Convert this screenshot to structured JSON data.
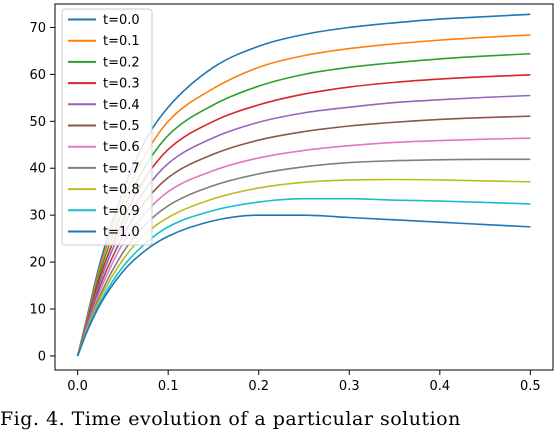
{
  "chart_data": {
    "type": "line",
    "title": "",
    "xlabel": "",
    "ylabel": "",
    "xlim": [
      -0.025,
      0.525
    ],
    "ylim": [
      -3,
      75
    ],
    "xticks": [
      0.0,
      0.1,
      0.2,
      0.3,
      0.4,
      0.5
    ],
    "xtick_labels": [
      "0.0",
      "0.1",
      "0.2",
      "0.3",
      "0.4",
      "0.5"
    ],
    "yticks": [
      0,
      10,
      20,
      30,
      40,
      50,
      60,
      70
    ],
    "ytick_labels": [
      "0",
      "10",
      "20",
      "30",
      "40",
      "50",
      "60",
      "70"
    ],
    "grid": false,
    "legend": "top-left",
    "x": [
      0,
      0.01,
      0.025,
      0.05,
      0.075,
      0.1,
      0.15,
      0.2,
      0.25,
      0.3,
      0.35,
      0.4,
      0.45,
      0.5
    ],
    "series": [
      {
        "name": "t=0.0",
        "color": "#1f77b4",
        "values": [
          0,
          8,
          20,
          35,
          46,
          53,
          61.5,
          66,
          68.5,
          70,
          71,
          71.8,
          72.3,
          72.8
        ]
      },
      {
        "name": "t=0.1",
        "color": "#ff7f0e",
        "values": [
          0,
          7.5,
          19,
          33,
          43,
          50,
          57,
          61.5,
          64,
          65.5,
          66.5,
          67.3,
          67.9,
          68.4
        ]
      },
      {
        "name": "t=0.2",
        "color": "#2ca02c",
        "values": [
          0,
          7,
          18,
          31,
          40.5,
          47,
          53.5,
          57.5,
          60,
          61.5,
          62.5,
          63.3,
          63.9,
          64.4
        ]
      },
      {
        "name": "t=0.3",
        "color": "#d62728",
        "values": [
          0,
          6.8,
          17,
          29,
          38,
          44,
          50,
          53.5,
          55.8,
          57.3,
          58.3,
          59,
          59.5,
          59.9
        ]
      },
      {
        "name": "t=0.4",
        "color": "#9467bd",
        "values": [
          0,
          6.5,
          16,
          27.5,
          35.5,
          41,
          46.5,
          49.8,
          51.8,
          53,
          54,
          54.6,
          55.1,
          55.5
        ]
      },
      {
        "name": "t=0.5",
        "color": "#8c564b",
        "values": [
          0,
          6.2,
          15,
          25.5,
          33,
          38,
          43,
          46,
          47.8,
          49,
          49.8,
          50.4,
          50.8,
          51.1
        ]
      },
      {
        "name": "t=0.6",
        "color": "#e377c2",
        "values": [
          0,
          6,
          14,
          24,
          30.5,
          35,
          39.5,
          42.2,
          43.8,
          44.8,
          45.5,
          45.9,
          46.2,
          46.4
        ]
      },
      {
        "name": "t=0.7",
        "color": "#7f7f7f",
        "values": [
          0,
          5.8,
          13,
          22,
          28,
          32,
          36.3,
          38.8,
          40.3,
          41.2,
          41.6,
          41.8,
          41.9,
          41.9
        ]
      },
      {
        "name": "t=0.8",
        "color": "#bcbd22",
        "values": [
          0,
          5.5,
          12.3,
          20.5,
          26,
          29.5,
          33.5,
          35.8,
          37,
          37.5,
          37.6,
          37.5,
          37.3,
          37.1
        ]
      },
      {
        "name": "t=0.9",
        "color": "#17becf",
        "values": [
          0,
          5.2,
          11.5,
          19,
          24,
          27.5,
          31,
          32.8,
          33.5,
          33.5,
          33.2,
          33,
          32.7,
          32.4
        ]
      },
      {
        "name": "t=1.0",
        "color": "#1f77b4",
        "values": [
          0,
          5,
          11,
          18,
          22.5,
          25.5,
          28.8,
          30,
          30,
          29.5,
          29,
          28.5,
          28,
          27.5
        ]
      }
    ]
  },
  "caption": "Fig. 4. Time evolution of a particular solution"
}
